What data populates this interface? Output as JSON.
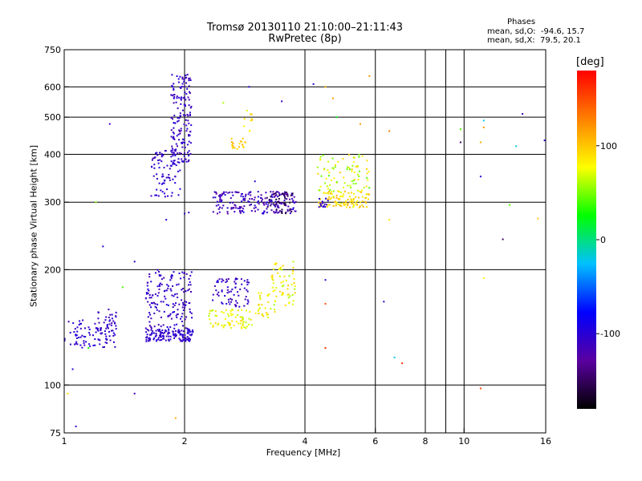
{
  "title_line1": "Tromsø 20130110 21:10:00–21:11:43",
  "title_line2": "RwPretec (8p)",
  "stats": {
    "header": "Phases",
    "o_line": "mean, sd,O:  -94.6, 15.7",
    "x_line": "mean, sd,X:  79.5, 20.1"
  },
  "colorbar": {
    "label": "[deg]",
    "ticks": [
      {
        "value": 100,
        "label": "100"
      },
      {
        "value": 0,
        "label": "0"
      },
      {
        "value": -100,
        "label": "-100"
      }
    ],
    "range": [
      -180,
      180
    ],
    "colors": [
      "#000000",
      "#5a00a0",
      "#0000ff",
      "#00c0ff",
      "#00ff00",
      "#ffff00",
      "#ff8000",
      "#ff0000"
    ]
  },
  "chart_data": {
    "type": "scatter",
    "xlabel": "Frequency [MHz]",
    "ylabel": "Stationary phase Virtual Height [km]",
    "xscale": "log",
    "yscale": "log",
    "xlim": [
      1,
      16
    ],
    "ylim": [
      75,
      750
    ],
    "grid": true,
    "x_ticks": [
      {
        "value": 1,
        "label": "1"
      },
      {
        "value": 2,
        "label": "2"
      },
      {
        "value": 4,
        "label": "4"
      },
      {
        "value": 6,
        "label": "6"
      },
      {
        "value": 8,
        "label": "8"
      },
      {
        "value": 10,
        "label": "10"
      },
      {
        "value": 16,
        "label": "16"
      }
    ],
    "x_grid": [
      2,
      4,
      6,
      8,
      9,
      10
    ],
    "y_ticks": [
      {
        "value": 75,
        "label": "75"
      },
      {
        "value": 100,
        "label": "100"
      },
      {
        "value": 200,
        "label": "200"
      },
      {
        "value": 300,
        "label": "300"
      },
      {
        "value": 400,
        "label": "400"
      },
      {
        "value": 500,
        "label": "500"
      },
      {
        "value": 600,
        "label": "600"
      },
      {
        "value": 750,
        "label": "750"
      }
    ],
    "y_grid": [
      100,
      200,
      300,
      400,
      500,
      600
    ],
    "clusters": [
      {
        "x": [
          1.0,
          1.35
        ],
        "y": [
          125,
          148
        ],
        "phase": [
          -115,
          -95
        ],
        "n": 90
      },
      {
        "x": [
          1.2,
          1.35
        ],
        "y": [
          135,
          160
        ],
        "phase": [
          -120,
          -100
        ],
        "n": 25
      },
      {
        "x": [
          1.6,
          2.1
        ],
        "y": [
          130,
          140
        ],
        "phase": [
          -115,
          -95
        ],
        "n": 140
      },
      {
        "x": [
          1.6,
          2.1
        ],
        "y": [
          140,
          200
        ],
        "phase": [
          -120,
          -95
        ],
        "n": 160
      },
      {
        "x": [
          1.65,
          1.95
        ],
        "y": [
          310,
          410
        ],
        "phase": [
          -115,
          -95
        ],
        "n": 80
      },
      {
        "x": [
          1.85,
          2.08
        ],
        "y": [
          380,
          650
        ],
        "phase": [
          -120,
          -95
        ],
        "n": 160
      },
      {
        "x": [
          2.35,
          3.8
        ],
        "y": [
          280,
          320
        ],
        "phase": [
          -130,
          -95
        ],
        "n": 200
      },
      {
        "x": [
          3.2,
          3.75
        ],
        "y": [
          280,
          320
        ],
        "phase": [
          -165,
          -145
        ],
        "n": 40
      },
      {
        "x": [
          2.35,
          2.9
        ],
        "y": [
          160,
          190
        ],
        "phase": [
          -120,
          -95
        ],
        "n": 70
      },
      {
        "x": [
          2.3,
          2.95
        ],
        "y": [
          140,
          158
        ],
        "phase": [
          60,
          95
        ],
        "n": 70
      },
      {
        "x": [
          3.0,
          3.4
        ],
        "y": [
          150,
          175
        ],
        "phase": [
          60,
          100
        ],
        "n": 30
      },
      {
        "x": [
          3.3,
          3.8
        ],
        "y": [
          160,
          210
        ],
        "phase": [
          55,
          100
        ],
        "n": 60
      },
      {
        "x": [
          2.6,
          2.85
        ],
        "y": [
          410,
          440
        ],
        "phase": [
          85,
          110
        ],
        "n": 20
      },
      {
        "x": [
          2.8,
          2.95
        ],
        "y": [
          460,
          520
        ],
        "phase": [
          70,
          105
        ],
        "n": 10
      },
      {
        "x": [
          4.3,
          5.8
        ],
        "y": [
          290,
          320
        ],
        "phase": [
          70,
          110
        ],
        "n": 100
      },
      {
        "x": [
          4.3,
          5.8
        ],
        "y": [
          320,
          400
        ],
        "phase": [
          40,
          100
        ],
        "n": 80
      },
      {
        "x": [
          4.3,
          4.6
        ],
        "y": [
          290,
          310
        ],
        "phase": [
          -115,
          -95
        ],
        "n": 15
      }
    ],
    "points": [
      {
        "x": 1.02,
        "y": 95,
        "phase": 90
      },
      {
        "x": 1.05,
        "y": 110,
        "phase": -100
      },
      {
        "x": 1.07,
        "y": 78,
        "phase": -110
      },
      {
        "x": 1.15,
        "y": 125,
        "phase": 30
      },
      {
        "x": 1.2,
        "y": 300,
        "phase": 50
      },
      {
        "x": 1.25,
        "y": 230,
        "phase": -100
      },
      {
        "x": 1.3,
        "y": 480,
        "phase": -110
      },
      {
        "x": 1.4,
        "y": 180,
        "phase": 40
      },
      {
        "x": 1.5,
        "y": 210,
        "phase": -100
      },
      {
        "x": 1.5,
        "y": 95,
        "phase": -110
      },
      {
        "x": 1.8,
        "y": 270,
        "phase": -100
      },
      {
        "x": 1.9,
        "y": 82,
        "phase": 110
      },
      {
        "x": 2.0,
        "y": 280,
        "phase": -110
      },
      {
        "x": 2.05,
        "y": 282,
        "phase": -105
      },
      {
        "x": 2.5,
        "y": 545,
        "phase": 60
      },
      {
        "x": 2.9,
        "y": 600,
        "phase": -100
      },
      {
        "x": 3.5,
        "y": 550,
        "phase": -110
      },
      {
        "x": 3.0,
        "y": 340,
        "phase": -105
      },
      {
        "x": 4.2,
        "y": 610,
        "phase": -100
      },
      {
        "x": 4.5,
        "y": 600,
        "phase": 110
      },
      {
        "x": 4.7,
        "y": 560,
        "phase": 120
      },
      {
        "x": 4.8,
        "y": 500,
        "phase": 20
      },
      {
        "x": 5.5,
        "y": 480,
        "phase": 120
      },
      {
        "x": 5.8,
        "y": 640,
        "phase": 120
      },
      {
        "x": 6.5,
        "y": 460,
        "phase": 130
      },
      {
        "x": 4.5,
        "y": 188,
        "phase": -100
      },
      {
        "x": 4.5,
        "y": 163,
        "phase": 150
      },
      {
        "x": 4.5,
        "y": 125,
        "phase": 160
      },
      {
        "x": 6.3,
        "y": 165,
        "phase": -110
      },
      {
        "x": 6.7,
        "y": 118,
        "phase": -20
      },
      {
        "x": 7.0,
        "y": 114,
        "phase": 160
      },
      {
        "x": 6.5,
        "y": 270,
        "phase": 90
      },
      {
        "x": 9.8,
        "y": 465,
        "phase": 40
      },
      {
        "x": 9.8,
        "y": 430,
        "phase": -150
      },
      {
        "x": 11.0,
        "y": 430,
        "phase": 110
      },
      {
        "x": 11.2,
        "y": 470,
        "phase": 120
      },
      {
        "x": 11.0,
        "y": 350,
        "phase": -100
      },
      {
        "x": 11.2,
        "y": 190,
        "phase": 80
      },
      {
        "x": 11.0,
        "y": 98,
        "phase": 150
      },
      {
        "x": 11.2,
        "y": 490,
        "phase": -20
      },
      {
        "x": 12.5,
        "y": 240,
        "phase": -150
      },
      {
        "x": 13.0,
        "y": 295,
        "phase": 40
      },
      {
        "x": 13.5,
        "y": 420,
        "phase": -20
      },
      {
        "x": 14.0,
        "y": 510,
        "phase": -110
      },
      {
        "x": 15.3,
        "y": 272,
        "phase": 100
      },
      {
        "x": 15.9,
        "y": 435,
        "phase": -100
      }
    ]
  }
}
